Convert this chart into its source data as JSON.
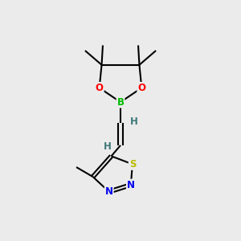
{
  "bg_color": "#ebebeb",
  "bond_color": "#000000",
  "atom_colors": {
    "O": "#ff0000",
    "B": "#00bb00",
    "S": "#bbbb00",
    "N": "#0000ee",
    "H": "#407878",
    "C": "#000000"
  },
  "font_size": 8.5,
  "fig_size": [
    3.0,
    3.0
  ],
  "dpi": 100,
  "xlim": [
    0,
    10
  ],
  "ylim": [
    0,
    10
  ]
}
